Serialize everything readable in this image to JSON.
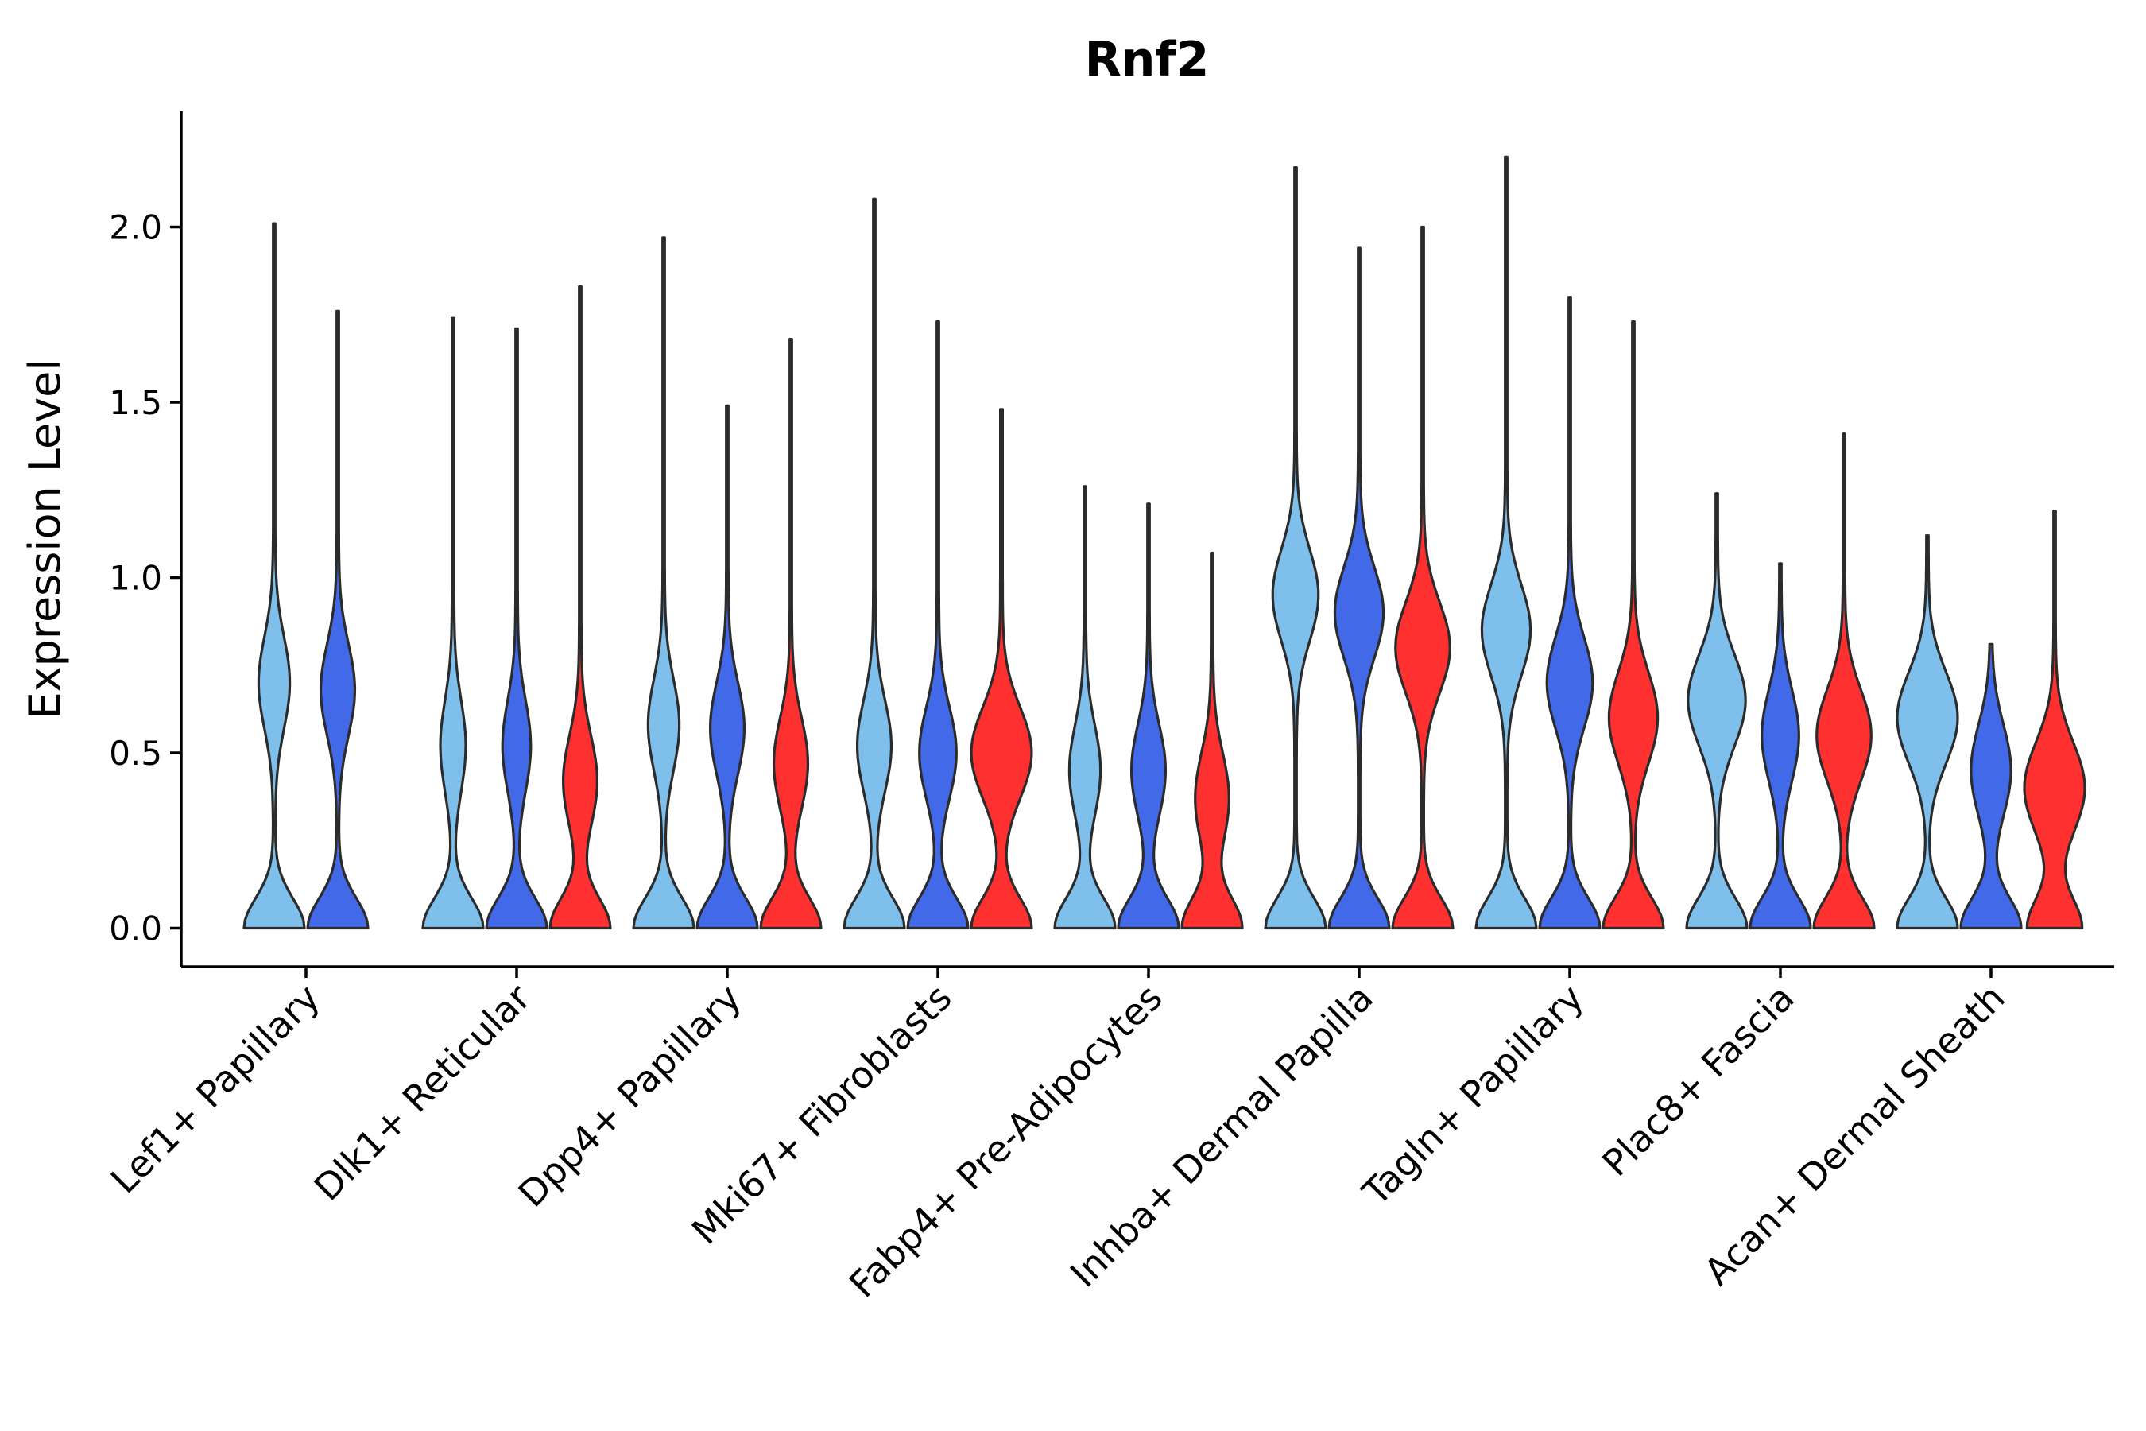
{
  "chart_data": {
    "type": "violin",
    "title": "Rnf2",
    "xlabel": "",
    "ylabel": "Expression Level",
    "ylim": [
      -0.11,
      2.33
    ],
    "yticks": [
      0.0,
      0.5,
      1.0,
      1.5,
      2.0
    ],
    "ytick_labels": [
      "0.0",
      "0.5",
      "1.0",
      "1.5",
      "2.0"
    ],
    "series_colors": [
      "#7fbfeb",
      "#4169e8",
      "#ff3030"
    ],
    "categories": [
      {
        "label": "Lef1+ Papillary",
        "violins": [
          {
            "max": 2.01,
            "modes": [
              [
                0.0,
                1.0
              ],
              [
                0.7,
                0.5
              ]
            ]
          },
          {
            "max": 1.76,
            "modes": [
              [
                0.0,
                1.0
              ],
              [
                0.68,
                0.55
              ]
            ]
          }
        ]
      },
      {
        "label": "Dlk1+ Reticular",
        "violins": [
          {
            "max": 1.74,
            "modes": [
              [
                0.0,
                1.0
              ],
              [
                0.52,
                0.4
              ]
            ]
          },
          {
            "max": 1.71,
            "modes": [
              [
                0.0,
                1.0
              ],
              [
                0.52,
                0.45
              ]
            ]
          },
          {
            "max": 1.83,
            "modes": [
              [
                0.0,
                1.0
              ],
              [
                0.42,
                0.55
              ]
            ]
          }
        ]
      },
      {
        "label": "Dpp4+ Papillary",
        "violins": [
          {
            "max": 1.97,
            "modes": [
              [
                0.0,
                1.0
              ],
              [
                0.58,
                0.5
              ]
            ]
          },
          {
            "max": 1.49,
            "modes": [
              [
                0.0,
                1.0
              ],
              [
                0.57,
                0.55
              ]
            ]
          },
          {
            "max": 1.68,
            "modes": [
              [
                0.0,
                1.0
              ],
              [
                0.47,
                0.55
              ]
            ]
          }
        ]
      },
      {
        "label": "Mki67+ Fibroblasts",
        "violins": [
          {
            "max": 2.08,
            "modes": [
              [
                0.0,
                1.0
              ],
              [
                0.52,
                0.55
              ]
            ]
          },
          {
            "max": 1.73,
            "modes": [
              [
                0.0,
                1.0
              ],
              [
                0.5,
                0.6
              ]
            ]
          },
          {
            "max": 1.48,
            "modes": [
              [
                0.0,
                0.9
              ],
              [
                0.5,
                0.9
              ]
            ]
          }
        ]
      },
      {
        "label": "Fabp4+ Pre-Adipocytes",
        "violins": [
          {
            "max": 1.26,
            "modes": [
              [
                0.0,
                1.0
              ],
              [
                0.45,
                0.5
              ]
            ]
          },
          {
            "max": 1.21,
            "modes": [
              [
                0.0,
                1.0
              ],
              [
                0.45,
                0.55
              ]
            ]
          },
          {
            "max": 1.07,
            "modes": [
              [
                0.0,
                1.0
              ],
              [
                0.37,
                0.55
              ]
            ]
          }
        ]
      },
      {
        "label": "Inhba+ Dermal Papilla",
        "violins": [
          {
            "max": 2.17,
            "modes": [
              [
                0.0,
                1.0
              ],
              [
                0.95,
                0.75
              ]
            ]
          },
          {
            "max": 1.94,
            "modes": [
              [
                0.0,
                1.0
              ],
              [
                0.9,
                0.8
              ]
            ]
          },
          {
            "max": 2.0,
            "modes": [
              [
                0.0,
                1.0
              ],
              [
                0.8,
                0.9
              ]
            ]
          }
        ]
      },
      {
        "label": "Tagln+ Papillary",
        "violins": [
          {
            "max": 2.2,
            "modes": [
              [
                0.0,
                1.0
              ],
              [
                0.85,
                0.8
              ]
            ]
          },
          {
            "max": 1.8,
            "modes": [
              [
                0.0,
                1.0
              ],
              [
                0.7,
                0.75
              ]
            ]
          },
          {
            "max": 1.73,
            "modes": [
              [
                0.0,
                1.0
              ],
              [
                0.6,
                0.8
              ]
            ]
          }
        ]
      },
      {
        "label": "Plac8+ Fascia",
        "violins": [
          {
            "max": 1.24,
            "modes": [
              [
                0.0,
                1.0
              ],
              [
                0.65,
                0.95
              ]
            ]
          },
          {
            "max": 1.04,
            "modes": [
              [
                0.0,
                1.0
              ],
              [
                0.55,
                0.6
              ]
            ]
          },
          {
            "max": 1.41,
            "modes": [
              [
                0.0,
                1.0
              ],
              [
                0.55,
                0.9
              ]
            ]
          }
        ]
      },
      {
        "label": "Acan+ Dermal Sheath",
        "violins": [
          {
            "max": 1.12,
            "modes": [
              [
                0.0,
                1.0
              ],
              [
                0.6,
                1.0
              ]
            ]
          },
          {
            "max": 0.81,
            "modes": [
              [
                0.0,
                1.0
              ],
              [
                0.45,
                0.65
              ]
            ]
          },
          {
            "max": 1.19,
            "modes": [
              [
                0.0,
                0.9
              ],
              [
                0.4,
                1.0
              ]
            ]
          }
        ]
      }
    ]
  }
}
